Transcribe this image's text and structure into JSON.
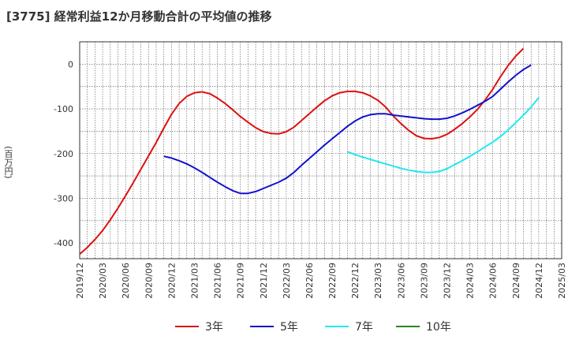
{
  "chart_data": {
    "type": "line",
    "title": "[3775]  経常利益12か月移動合計の平均値の推移",
    "xlabel": "",
    "ylabel": "(百万円)",
    "ylim": [
      -435,
      50
    ],
    "yticks": [
      0,
      -100,
      -200,
      -300,
      -400
    ],
    "grid": true,
    "legend_position": "bottom-center",
    "x_tick_labels": [
      "2019/12",
      "2020/03",
      "2020/06",
      "2020/09",
      "2020/12",
      "2021/03",
      "2021/06",
      "2021/09",
      "2021/12",
      "2022/03",
      "2022/06",
      "2022/09",
      "2022/12",
      "2023/03",
      "2023/06",
      "2023/09",
      "2023/12",
      "2024/03",
      "2024/06",
      "2024/09",
      "2024/12",
      "2025/03"
    ],
    "series": [
      {
        "name": "3年",
        "color": "#dd1111",
        "points": [
          [
            "2019/12",
            -425
          ],
          [
            "2020/01",
            -410
          ],
          [
            "2020/02",
            -392
          ],
          [
            "2020/03",
            -372
          ],
          [
            "2020/04",
            -348
          ],
          [
            "2020/05",
            -322
          ],
          [
            "2020/06",
            -294
          ],
          [
            "2020/07",
            -265
          ],
          [
            "2020/08",
            -235
          ],
          [
            "2020/09",
            -205
          ],
          [
            "2020/10",
            -175
          ],
          [
            "2020/11",
            -143
          ],
          [
            "2020/12",
            -112
          ],
          [
            "2021/01",
            -88
          ],
          [
            "2021/02",
            -72
          ],
          [
            "2021/03",
            -64
          ],
          [
            "2021/04",
            -62
          ],
          [
            "2021/05",
            -66
          ],
          [
            "2021/06",
            -76
          ],
          [
            "2021/07",
            -88
          ],
          [
            "2021/08",
            -102
          ],
          [
            "2021/09",
            -117
          ],
          [
            "2021/10",
            -130
          ],
          [
            "2021/11",
            -142
          ],
          [
            "2021/12",
            -151
          ],
          [
            "2022/01",
            -155
          ],
          [
            "2022/02",
            -156
          ],
          [
            "2022/03",
            -151
          ],
          [
            "2022/04",
            -141
          ],
          [
            "2022/05",
            -126
          ],
          [
            "2022/06",
            -111
          ],
          [
            "2022/07",
            -96
          ],
          [
            "2022/08",
            -82
          ],
          [
            "2022/09",
            -71
          ],
          [
            "2022/10",
            -64
          ],
          [
            "2022/11",
            -61
          ],
          [
            "2022/12",
            -61
          ],
          [
            "2023/01",
            -64
          ],
          [
            "2023/02",
            -71
          ],
          [
            "2023/03",
            -81
          ],
          [
            "2023/04",
            -96
          ],
          [
            "2023/05",
            -116
          ],
          [
            "2023/06",
            -133
          ],
          [
            "2023/07",
            -148
          ],
          [
            "2023/08",
            -160
          ],
          [
            "2023/09",
            -166
          ],
          [
            "2023/10",
            -167
          ],
          [
            "2023/11",
            -164
          ],
          [
            "2023/12",
            -157
          ],
          [
            "2024/01",
            -146
          ],
          [
            "2024/02",
            -133
          ],
          [
            "2024/03",
            -118
          ],
          [
            "2024/04",
            -101
          ],
          [
            "2024/05",
            -80
          ],
          [
            "2024/06",
            -56
          ],
          [
            "2024/07",
            -28
          ],
          [
            "2024/08",
            -3
          ],
          [
            "2024/09",
            18
          ],
          [
            "2024/10",
            35
          ]
        ]
      },
      {
        "name": "5年",
        "color": "#1111cc",
        "points": [
          [
            "2020/11",
            -206
          ],
          [
            "2020/12",
            -210
          ],
          [
            "2021/01",
            -216
          ],
          [
            "2021/02",
            -223
          ],
          [
            "2021/03",
            -232
          ],
          [
            "2021/04",
            -242
          ],
          [
            "2021/05",
            -253
          ],
          [
            "2021/06",
            -264
          ],
          [
            "2021/07",
            -274
          ],
          [
            "2021/08",
            -283
          ],
          [
            "2021/09",
            -289
          ],
          [
            "2021/10",
            -289
          ],
          [
            "2021/11",
            -285
          ],
          [
            "2021/12",
            -278
          ],
          [
            "2022/01",
            -271
          ],
          [
            "2022/02",
            -264
          ],
          [
            "2022/03",
            -255
          ],
          [
            "2022/04",
            -242
          ],
          [
            "2022/05",
            -226
          ],
          [
            "2022/06",
            -211
          ],
          [
            "2022/07",
            -196
          ],
          [
            "2022/08",
            -181
          ],
          [
            "2022/09",
            -167
          ],
          [
            "2022/10",
            -153
          ],
          [
            "2022/11",
            -139
          ],
          [
            "2022/12",
            -127
          ],
          [
            "2023/01",
            -118
          ],
          [
            "2023/02",
            -113
          ],
          [
            "2023/03",
            -111
          ],
          [
            "2023/04",
            -111
          ],
          [
            "2023/05",
            -114
          ],
          [
            "2023/06",
            -116
          ],
          [
            "2023/07",
            -118
          ],
          [
            "2023/08",
            -120
          ],
          [
            "2023/09",
            -122
          ],
          [
            "2023/10",
            -123
          ],
          [
            "2023/11",
            -123
          ],
          [
            "2023/12",
            -121
          ],
          [
            "2024/01",
            -116
          ],
          [
            "2024/02",
            -109
          ],
          [
            "2024/03",
            -101
          ],
          [
            "2024/04",
            -92
          ],
          [
            "2024/05",
            -83
          ],
          [
            "2024/06",
            -72
          ],
          [
            "2024/07",
            -56
          ],
          [
            "2024/08",
            -40
          ],
          [
            "2024/09",
            -25
          ],
          [
            "2024/10",
            -12
          ],
          [
            "2024/11",
            -2
          ]
        ]
      },
      {
        "name": "7年",
        "color": "#22e8f0",
        "points": [
          [
            "2022/11",
            -196
          ],
          [
            "2022/12",
            -202
          ],
          [
            "2023/01",
            -208
          ],
          [
            "2023/02",
            -213
          ],
          [
            "2023/03",
            -218
          ],
          [
            "2023/04",
            -223
          ],
          [
            "2023/05",
            -228
          ],
          [
            "2023/06",
            -233
          ],
          [
            "2023/07",
            -237
          ],
          [
            "2023/08",
            -240
          ],
          [
            "2023/09",
            -242
          ],
          [
            "2023/10",
            -242
          ],
          [
            "2023/11",
            -240
          ],
          [
            "2023/12",
            -234
          ],
          [
            "2024/01",
            -225
          ],
          [
            "2024/02",
            -216
          ],
          [
            "2024/03",
            -206
          ],
          [
            "2024/04",
            -196
          ],
          [
            "2024/05",
            -185
          ],
          [
            "2024/06",
            -174
          ],
          [
            "2024/07",
            -162
          ],
          [
            "2024/08",
            -147
          ],
          [
            "2024/09",
            -131
          ],
          [
            "2024/10",
            -114
          ],
          [
            "2024/11",
            -96
          ],
          [
            "2024/12",
            -75
          ]
        ]
      },
      {
        "name": "10年",
        "color": "#228822",
        "points": []
      }
    ]
  }
}
